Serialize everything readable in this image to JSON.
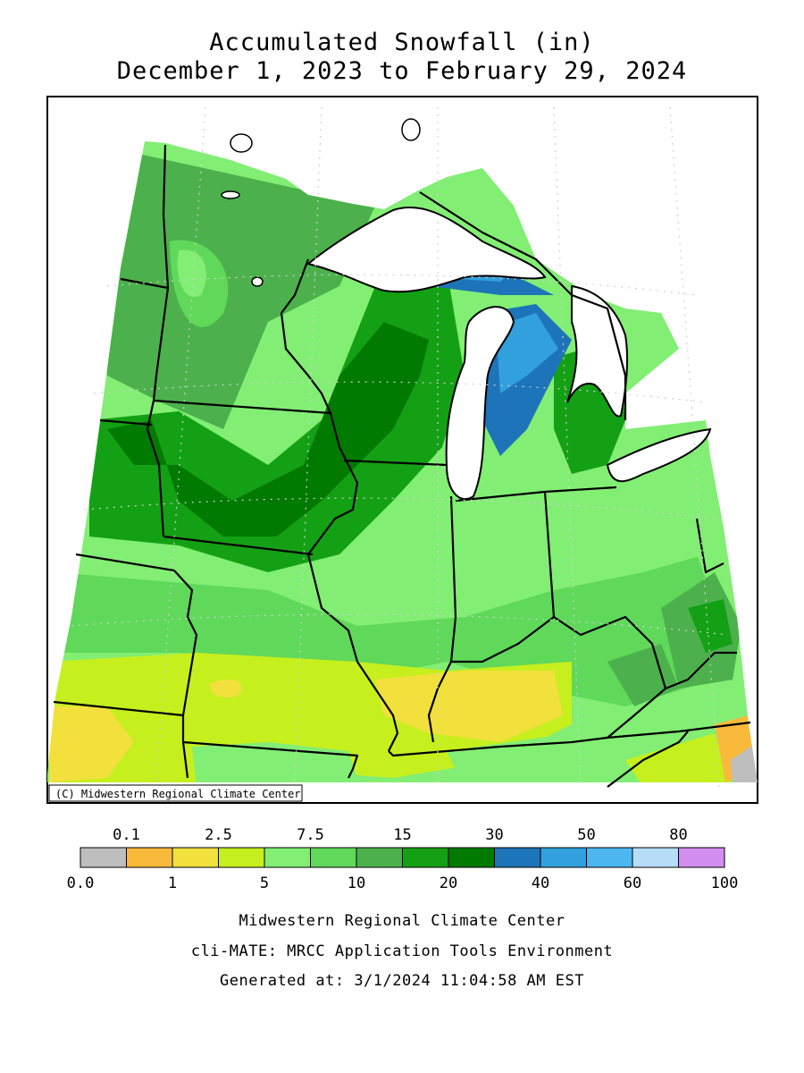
{
  "header": {
    "title": "Accumulated Snowfall (in)",
    "period": "December 1, 2023 to February 29, 2024"
  },
  "map": {
    "copyright": "(C) Midwestern Regional Climate Center",
    "ocean_color": "#ffffff",
    "border_color": "#000000"
  },
  "legend": {
    "upper_labels": [
      "0.1",
      "2.5",
      "7.5",
      "15",
      "30",
      "50",
      "80"
    ],
    "lower_labels": [
      "0.0",
      "1",
      "5",
      "10",
      "20",
      "40",
      "60",
      "100"
    ],
    "bins": [
      {
        "color": "#bebebe"
      },
      {
        "color": "#f9ba3b"
      },
      {
        "color": "#f2e03d"
      },
      {
        "color": "#c6ef1e"
      },
      {
        "color": "#82ee74"
      },
      {
        "color": "#60d85a"
      },
      {
        "color": "#4cb14c"
      },
      {
        "color": "#14a014"
      },
      {
        "color": "#007a00"
      },
      {
        "color": "#1e74b8"
      },
      {
        "color": "#31a0dc"
      },
      {
        "color": "#4bb6ef"
      },
      {
        "color": "#b6dcf8"
      },
      {
        "color": "#d28ff0"
      }
    ]
  },
  "footer": {
    "org": "Midwestern Regional Climate Center",
    "tool": "cli-MATE: MRCC Application Tools Environment",
    "generated": "Generated at: 3/1/2024 11:04:58 AM EST"
  }
}
